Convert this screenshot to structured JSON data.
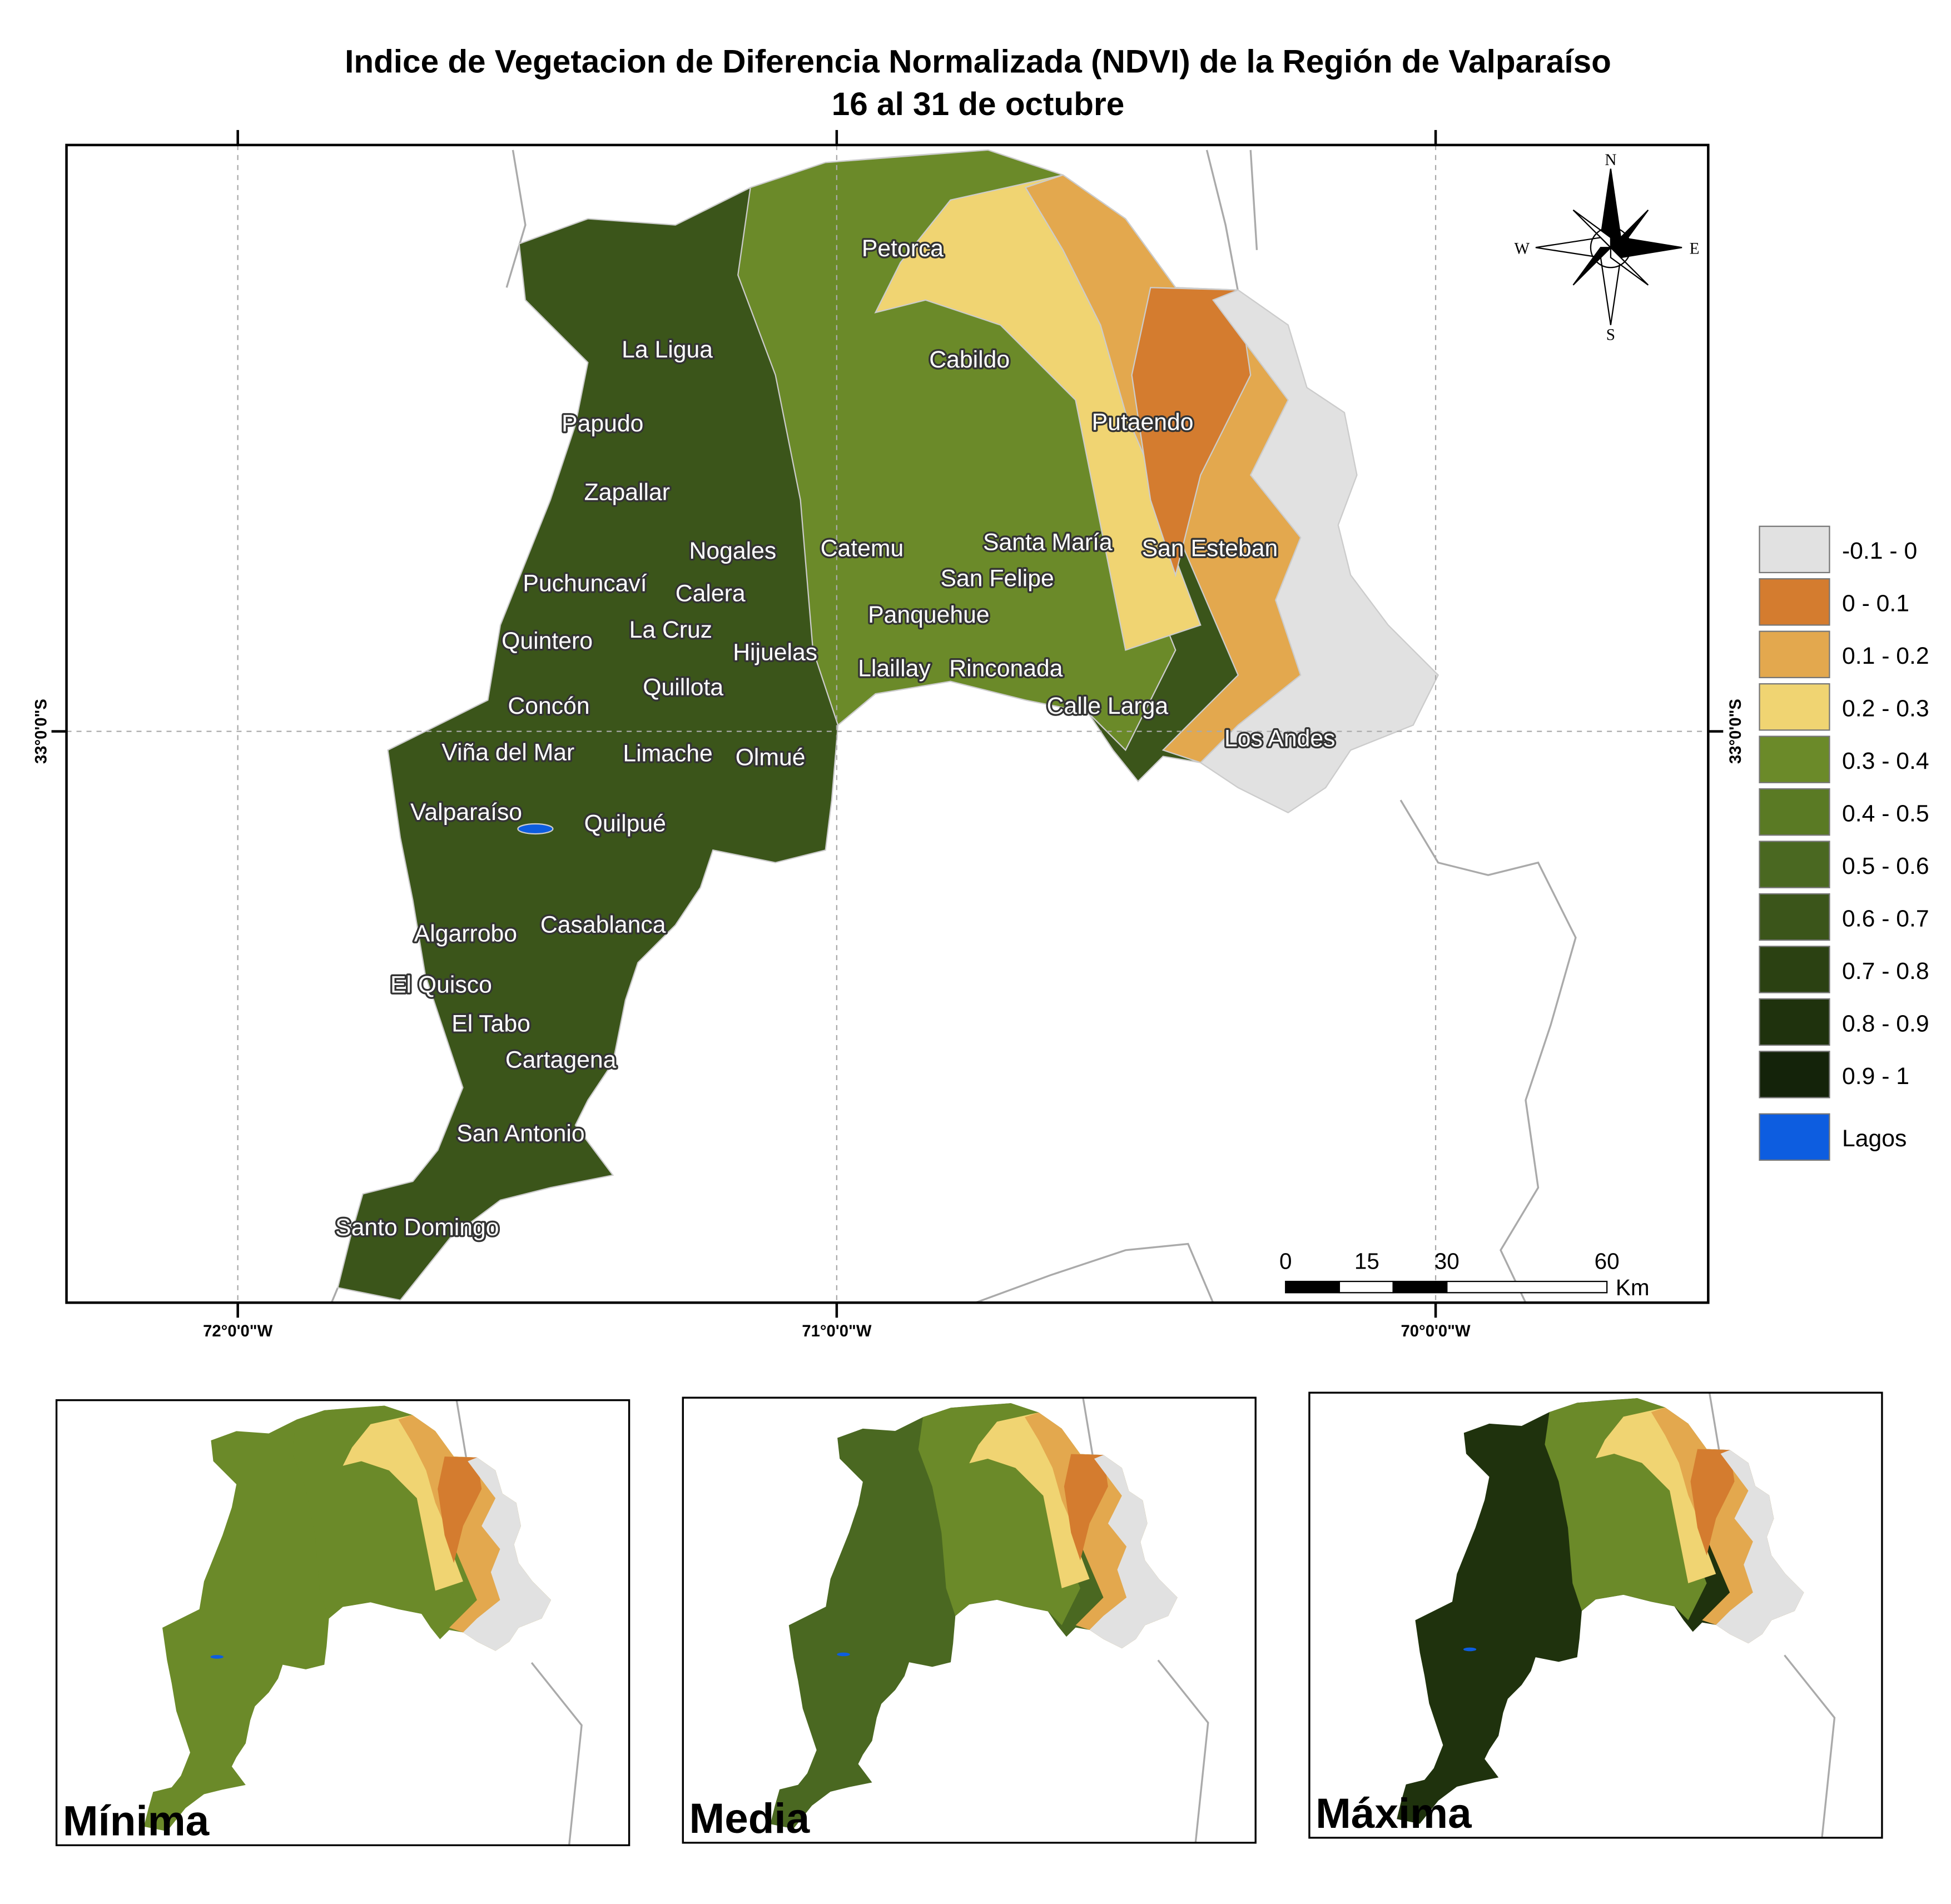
{
  "title": {
    "line1": "Indice de Vegetacion de Diferencia Normalizada (NDVI) de la Región de Valparaíso",
    "line2": "16 al 31 de octubre"
  },
  "coordinates": {
    "x": [
      "72°0'0\"W",
      "71°0'0\"W",
      "70°0'0\"W"
    ],
    "y_left": "33°0'0\"S",
    "y_right": "33°0'0\"S"
  },
  "compass": {
    "n": "N",
    "s": "S",
    "e": "E",
    "w": "W"
  },
  "places": [
    "Petorca",
    "La Ligua",
    "Cabildo",
    "Papudo",
    "Putaendo",
    "Zapallar",
    "Nogales",
    "Catemu",
    "Santa María",
    "San Esteban",
    "Puchuncaví",
    "Calera",
    "San Felipe",
    "Panquehue",
    "La Cruz",
    "Quintero",
    "Hijuelas",
    "Llaillay",
    "Rinconada",
    "Quillota",
    "Concón",
    "Calle Larga",
    "Los Andes",
    "Viña del Mar",
    "Limache",
    "Olmué",
    "Valparaíso",
    "Quilpué",
    "Algarrobo",
    "Casablanca",
    "El Quisco",
    "El Tabo",
    "Cartagena",
    "San Antonio",
    "Santo Domingo"
  ],
  "legend": [
    {
      "label": "-0.1 - 0",
      "color": "#e1e1e1"
    },
    {
      "label": "0 - 0.1",
      "color": "#d47c2f"
    },
    {
      "label": "0.1 - 0.2",
      "color": "#e3a84e"
    },
    {
      "label": "0.2 - 0.3",
      "color": "#f0d472"
    },
    {
      "label": "0.3 - 0.4",
      "color": "#6b8a29"
    },
    {
      "label": "0.4 - 0.5",
      "color": "#5a7a24"
    },
    {
      "label": "0.5 - 0.6",
      "color": "#4a6821"
    },
    {
      "label": "0.6 - 0.7",
      "color": "#3b551a"
    },
    {
      "label": "0.7 - 0.8",
      "color": "#2b4112"
    },
    {
      "label": "0.8 - 0.9",
      "color": "#1f320d"
    },
    {
      "label": "0.9 - 1",
      "color": "#14230a"
    },
    {
      "label": "Lagos",
      "color": "#0d5de0"
    }
  ],
  "scale_bar": {
    "ticks": [
      "0",
      "15",
      "30",
      "60"
    ],
    "unit": "Km"
  },
  "insets": [
    "Mínima",
    "Media",
    "Máxima"
  ]
}
